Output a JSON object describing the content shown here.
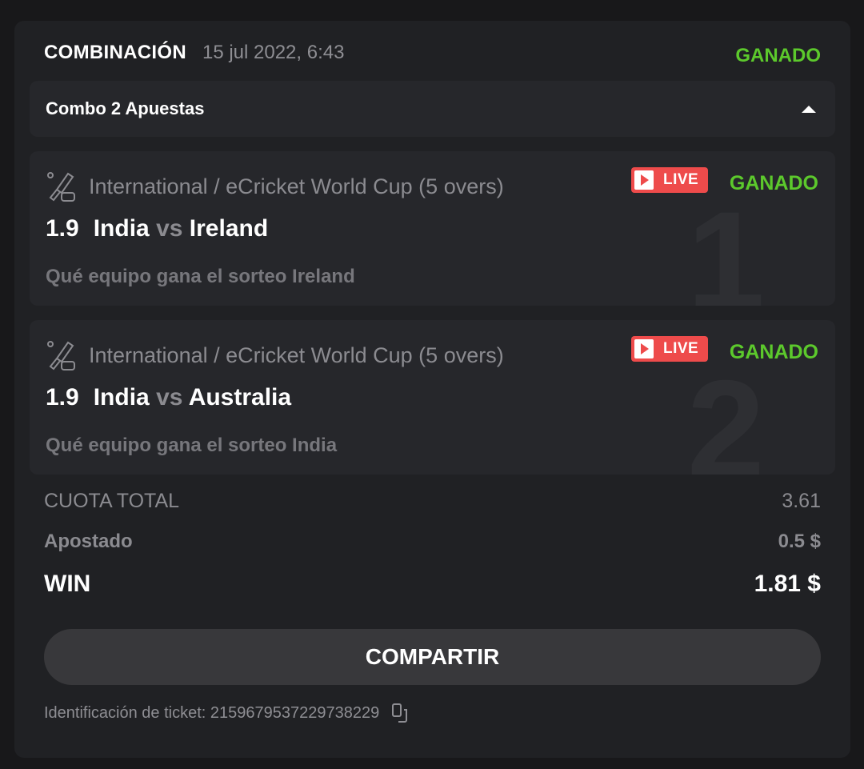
{
  "header": {
    "title": "COMBINACIÓN",
    "date": "15 jul 2022, 6:43",
    "status": "GANADO"
  },
  "combo": {
    "label": "Combo 2 Apuestas"
  },
  "bets": [
    {
      "number": "1",
      "category": "International / eCricket World Cup (5 overs)",
      "live": "LIVE",
      "status": "GANADO",
      "odd": "1.9",
      "home": "India",
      "vs": "vs",
      "away": "Ireland",
      "selection": "Qué equipo gana el sorteo Ireland"
    },
    {
      "number": "2",
      "category": "International / eCricket World Cup (5 overs)",
      "live": "LIVE",
      "status": "GANADO",
      "odd": "1.9",
      "home": "India",
      "vs": "vs",
      "away": "Australia",
      "selection": "Qué equipo gana el sorteo India"
    }
  ],
  "summary": {
    "total_label": "CUOTA TOTAL",
    "total_value": "3.61",
    "staked_label": "Apostado",
    "staked_value": "0.5 $",
    "win_label": "WIN",
    "win_value": "1.81 $"
  },
  "share_label": "COMPARTIR",
  "ticket": {
    "label": "Identificación de ticket: 2159679537229738229"
  },
  "colors": {
    "won": "#5cc92c",
    "live": "#ee4b4b"
  }
}
